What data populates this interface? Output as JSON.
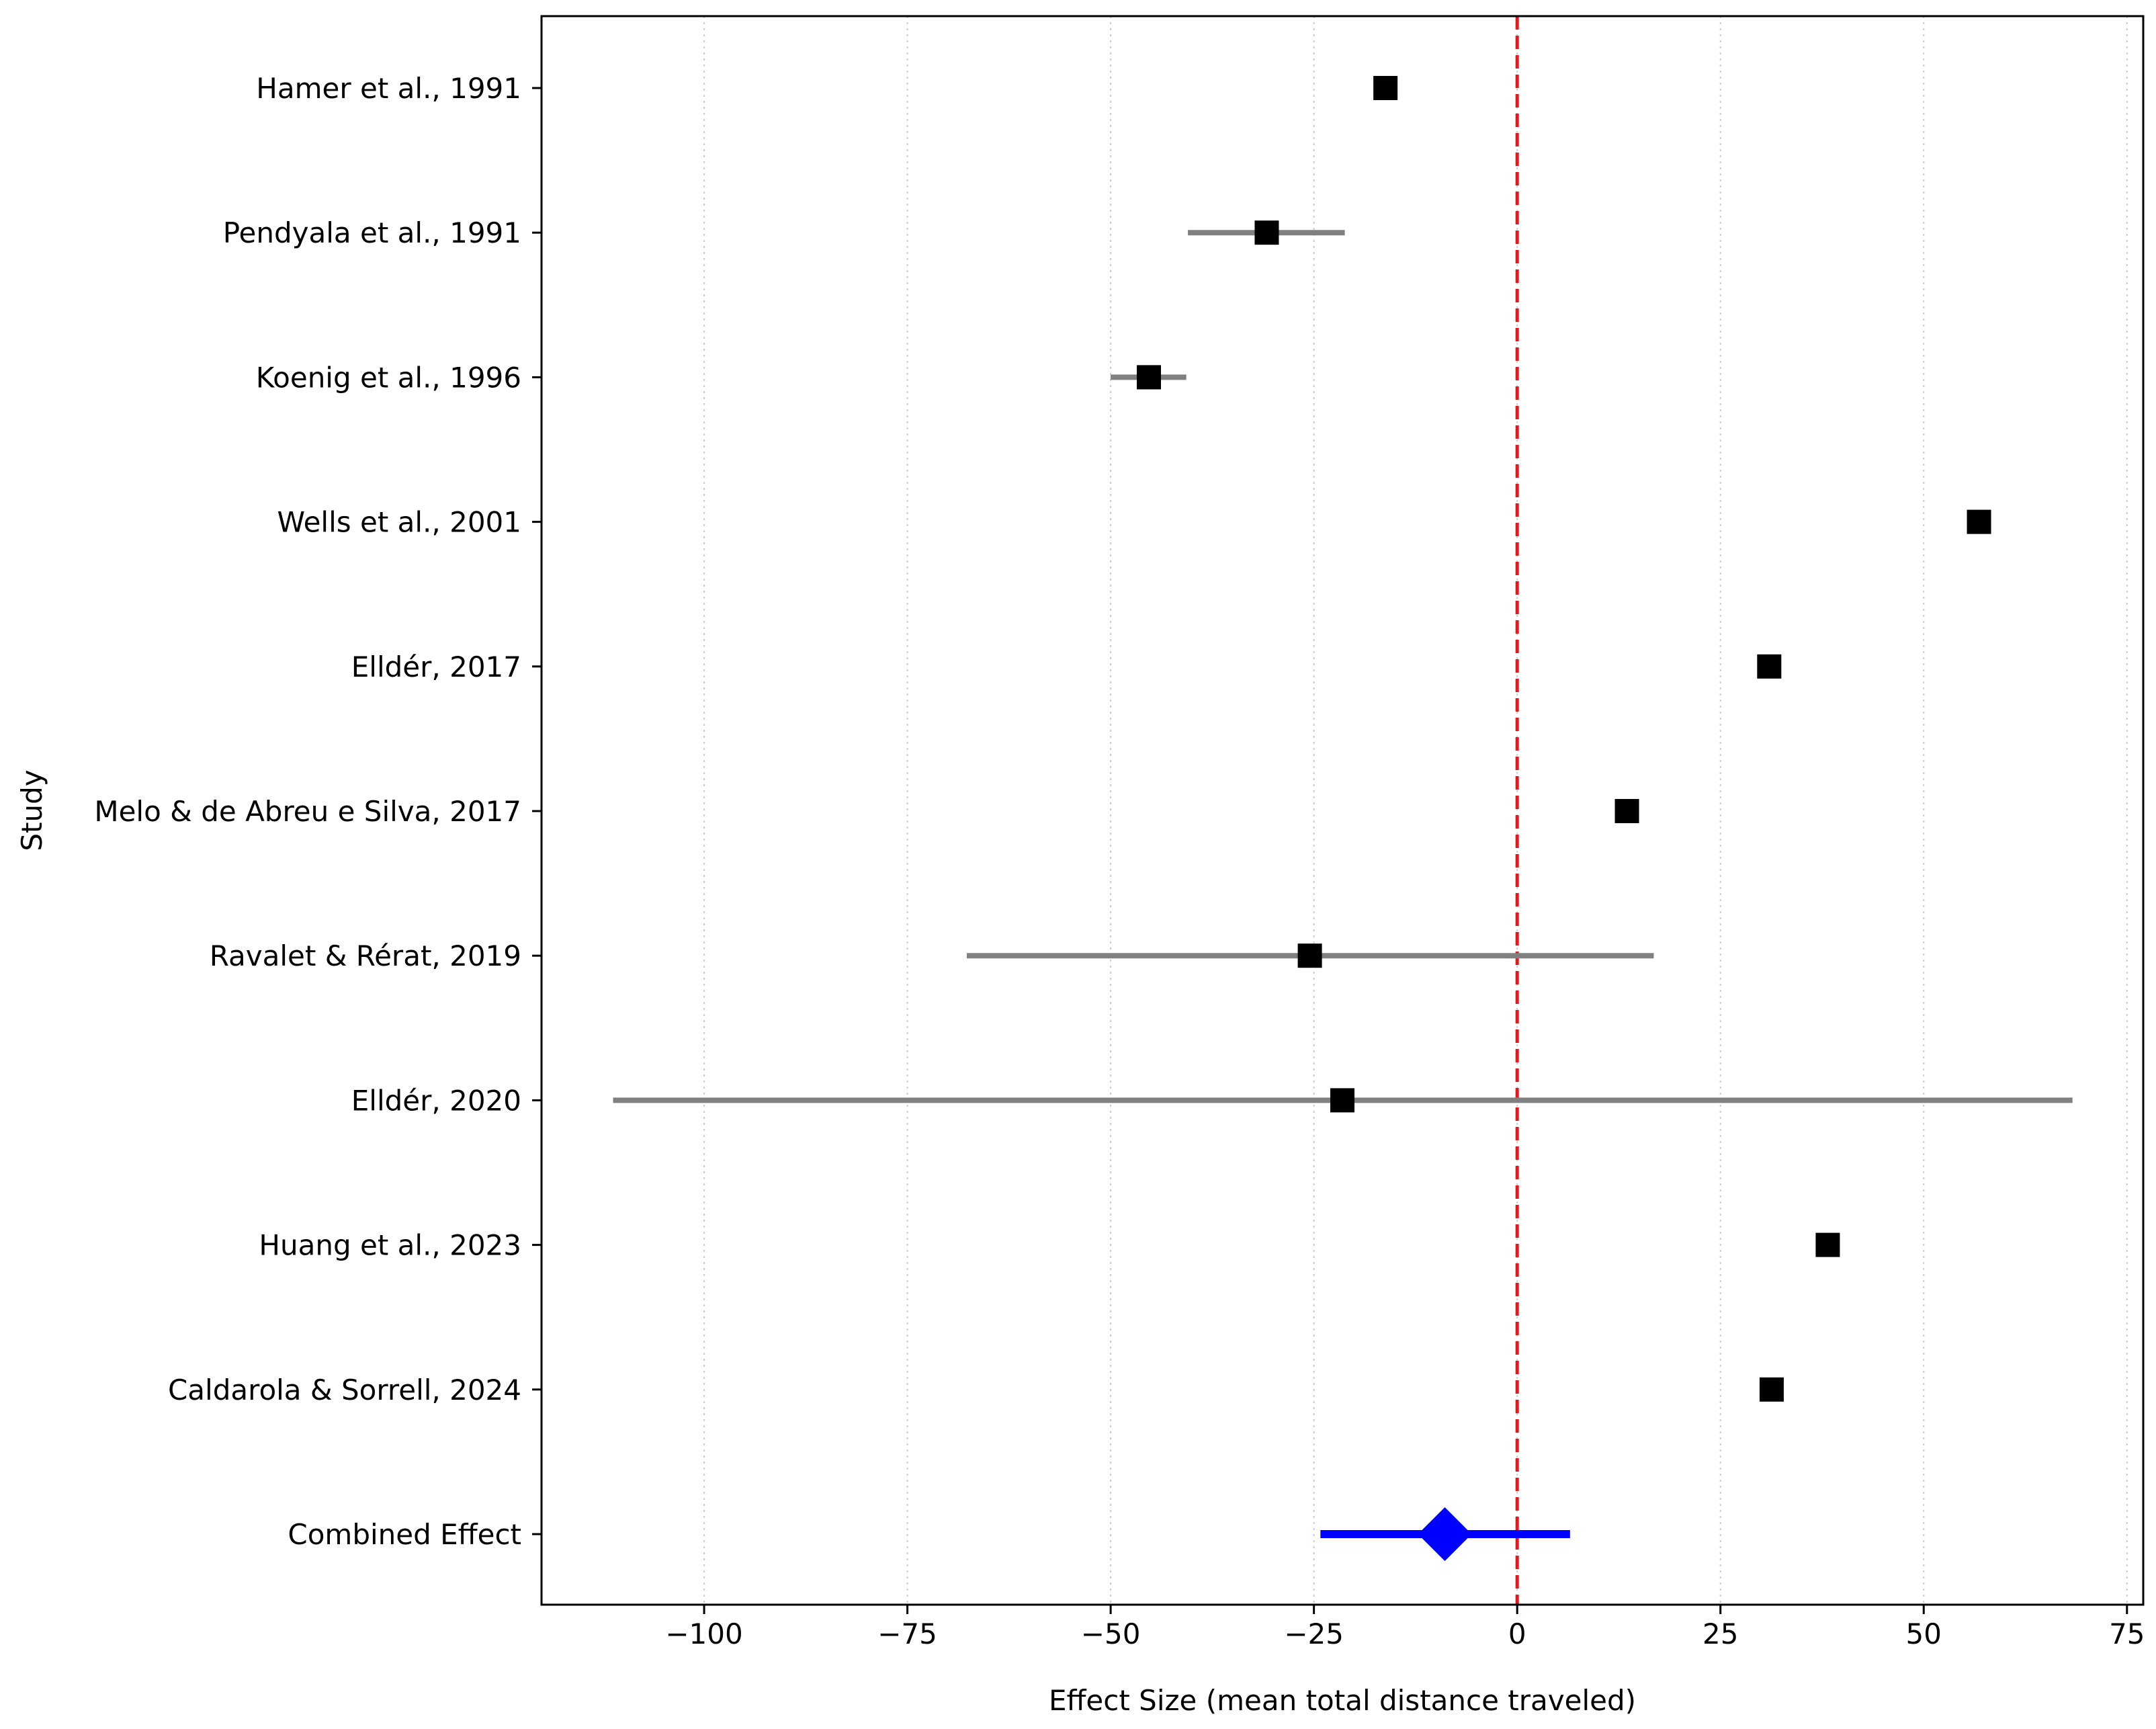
{
  "chart_data": {
    "type": "forest",
    "title": "",
    "xlabel": "Effect Size (mean total distance traveled)",
    "ylabel": "Study",
    "xlim": [
      -120,
      77
    ],
    "xticks": [
      -100,
      -75,
      -50,
      -25,
      0,
      25,
      50,
      75
    ],
    "xtick_labels": [
      "−100",
      "−75",
      "−50",
      "−25",
      "0",
      "25",
      "50",
      "75"
    ],
    "grid": "x-dotted",
    "reference_line": {
      "x": 0,
      "style": "dashed",
      "color": "#e31a1c"
    },
    "studies": [
      {
        "label": "Hamer et al., 1991",
        "effect": -16.2,
        "ci_low": -16.2,
        "ci_high": -16.2
      },
      {
        "label": "Pendyala et al., 1991",
        "effect": -30.8,
        "ci_low": -40.5,
        "ci_high": -21.2
      },
      {
        "label": "Koenig et al., 1996",
        "effect": -45.3,
        "ci_low": -50.0,
        "ci_high": -40.7
      },
      {
        "label": "Wells et al., 2001",
        "effect": 56.8,
        "ci_low": 56.8,
        "ci_high": 56.8
      },
      {
        "label": "Elldér, 2017",
        "effect": 31.0,
        "ci_low": 31.0,
        "ci_high": 31.0
      },
      {
        "label": "Melo & de Abreu e Silva, 2017",
        "effect": 13.5,
        "ci_low": 13.5,
        "ci_high": 13.5
      },
      {
        "label": "Ravalet & Rérat, 2019",
        "effect": -25.5,
        "ci_low": -67.7,
        "ci_high": 16.8
      },
      {
        "label": "Elldér, 2020",
        "effect": -21.5,
        "ci_low": -111.2,
        "ci_high": 68.3
      },
      {
        "label": "Huang et al., 2023",
        "effect": 38.2,
        "ci_low": 38.2,
        "ci_high": 38.2
      },
      {
        "label": "Caldarola & Sorrell, 2024",
        "effect": 31.3,
        "ci_low": 31.3,
        "ci_high": 31.3
      }
    ],
    "combined": {
      "label": "Combined Effect",
      "effect": -8.9,
      "ci_low": -24.2,
      "ci_high": 6.5
    },
    "colors": {
      "study_marker": "#000000",
      "study_ci": "#808080",
      "combined": "#0000ff",
      "grid": "#cccccc",
      "axes": "#000000"
    }
  }
}
